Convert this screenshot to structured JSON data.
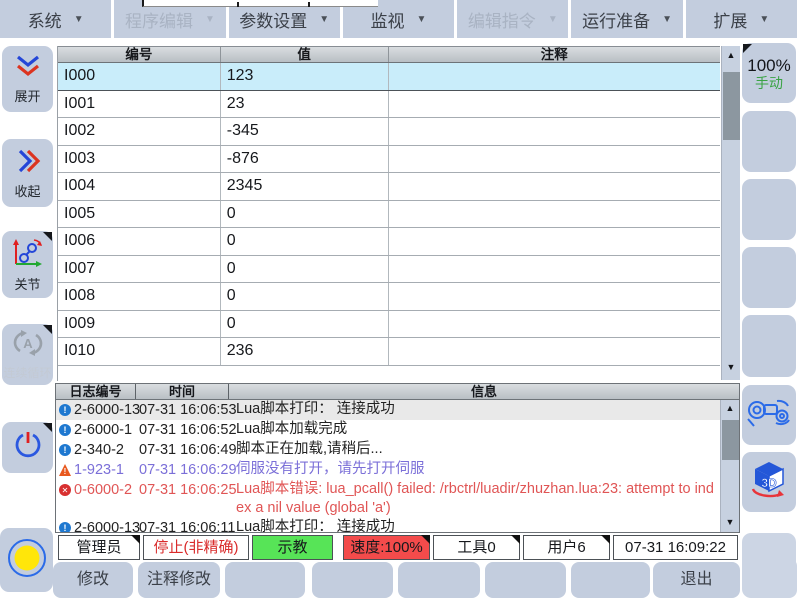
{
  "menu": {
    "items": [
      {
        "label": "系统",
        "disabled": false
      },
      {
        "label": "程序编辑",
        "disabled": true
      },
      {
        "label": "参数设置",
        "disabled": false
      },
      {
        "label": "监视",
        "disabled": false
      },
      {
        "label": "编辑指令",
        "disabled": true
      },
      {
        "label": "运行准备",
        "disabled": false
      },
      {
        "label": "扩展",
        "disabled": false
      }
    ]
  },
  "sidebar": {
    "expand_label": "展开",
    "collapse_label": "收起",
    "joint_label": "关节",
    "cycle_label": "连续循环",
    "cycle_letter": "A"
  },
  "table": {
    "headers": [
      "编号",
      "值",
      "注释"
    ],
    "selected_index": 0,
    "rows": [
      {
        "id": "I000",
        "value": "123",
        "comment": ""
      },
      {
        "id": "I001",
        "value": "23",
        "comment": ""
      },
      {
        "id": "I002",
        "value": "-345",
        "comment": ""
      },
      {
        "id": "I003",
        "value": "-876",
        "comment": ""
      },
      {
        "id": "I004",
        "value": "2345",
        "comment": ""
      },
      {
        "id": "I005",
        "value": "0",
        "comment": ""
      },
      {
        "id": "I006",
        "value": "0",
        "comment": ""
      },
      {
        "id": "I007",
        "value": "0",
        "comment": ""
      },
      {
        "id": "I008",
        "value": "0",
        "comment": ""
      },
      {
        "id": "I009",
        "value": "0",
        "comment": ""
      },
      {
        "id": "I010",
        "value": "236",
        "comment": ""
      }
    ]
  },
  "log": {
    "headers": [
      "日志编号",
      "时间",
      "信息"
    ],
    "rows": [
      {
        "level": "info",
        "code": "2-6000-13",
        "time": "07-31 16:06:53",
        "message": "Lua脚本打印： 连接成功"
      },
      {
        "level": "info",
        "code": "2-6000-1",
        "time": "07-31 16:06:52",
        "message": "Lua脚本加载完成"
      },
      {
        "level": "info",
        "code": "2-340-2",
        "time": "07-31 16:06:49",
        "message": "脚本正在加载,请稍后..."
      },
      {
        "level": "warning",
        "code": "1-923-1",
        "time": "07-31 16:06:29",
        "message": "伺服没有打开，请先打开伺服"
      },
      {
        "level": "error",
        "code": "0-6000-2",
        "time": "07-31 16:06:25",
        "message": "Lua脚本错误: lua_pcall() failed: /rbctrl/luadir/zhuzhan.lua:23: attempt to index a nil value (global 'a')"
      },
      {
        "level": "info",
        "code": "2-6000-13",
        "time": "07-31 16:06:11",
        "message": "Lua脚本打印： 连接成功"
      }
    ]
  },
  "right_panel": {
    "override": "100%",
    "mode": "手动",
    "view3d_label": "3D"
  },
  "status_bar": {
    "access_level": "管理员",
    "motion_state": "停止(非精确)",
    "teach_mode": "示教",
    "speed": "速度:100%",
    "tool": "工具0",
    "user_frame": "用户6",
    "datetime": "07-31 16:09:22"
  },
  "bottom_buttons": {
    "modify": "修改",
    "comment_modify": "注释修改",
    "exit": "退出"
  },
  "colors": {
    "panel_blue": "#c3cdde",
    "selected_row": "#c9edfa",
    "teach_green": "#57e457",
    "speed_red": "#f34b4b",
    "stop_text_red": "#d92b2b",
    "warning_purple": "#7b6fd8",
    "error_red": "#e05555",
    "manual_green": "#3aa344",
    "info_blue": "#1e78d0"
  }
}
